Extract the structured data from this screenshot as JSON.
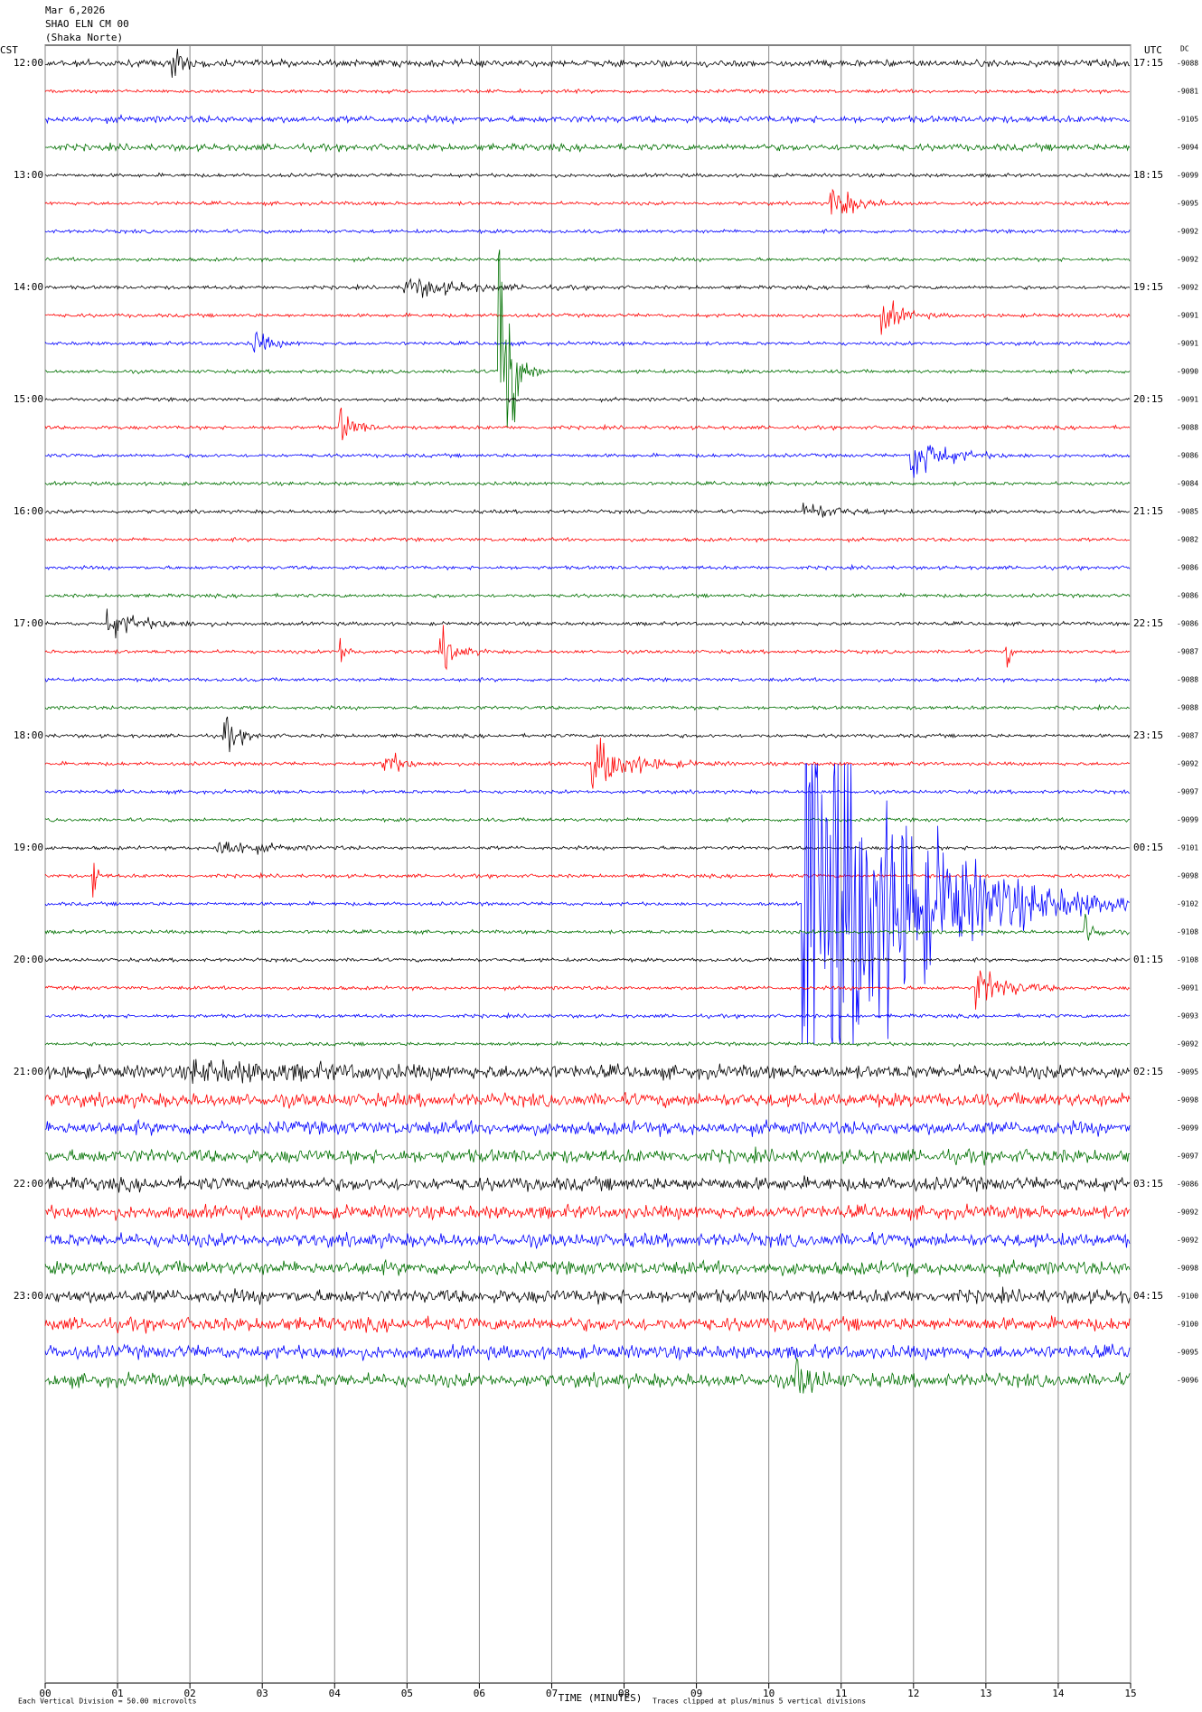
{
  "chart_data": {
    "type": "helicorder",
    "title": "Mar 6,2026",
    "subtitle": "SHAO ELN CM 00",
    "station_name": "(Shaka Norte)",
    "left_axis_label": "CST",
    "right_axis_label": "UTC",
    "dc_label": "DC",
    "xlabel": "TIME (MINUTES)",
    "footer_left": "Each Vertical Division =   50.00 microvolts",
    "footer_right": "Traces clipped at plus/minus 5 vertical divisions",
    "xlim": [
      0,
      15
    ],
    "xticks": [
      {
        "value": 0,
        "label": "00"
      },
      {
        "value": 1,
        "label": "01"
      },
      {
        "value": 2,
        "label": "02"
      },
      {
        "value": 3,
        "label": "03"
      },
      {
        "value": 4,
        "label": "04"
      },
      {
        "value": 5,
        "label": "05"
      },
      {
        "value": 6,
        "label": "06"
      },
      {
        "value": 7,
        "label": "07"
      },
      {
        "value": 8,
        "label": "08"
      },
      {
        "value": 9,
        "label": "09"
      },
      {
        "value": 10,
        "label": "10"
      },
      {
        "value": 11,
        "label": "11"
      },
      {
        "value": 12,
        "label": "12"
      },
      {
        "value": 13,
        "label": "13"
      },
      {
        "value": 14,
        "label": "14"
      },
      {
        "value": 15,
        "label": "15"
      }
    ],
    "grid": true,
    "colors": [
      "#000000",
      "#ff0000",
      "#0000ff",
      "#007000"
    ],
    "left_times": [
      "12:00",
      "13:00",
      "14:00",
      "15:00",
      "16:00",
      "17:00",
      "18:00",
      "19:00",
      "20:00",
      "21:00",
      "22:00",
      "23:00"
    ],
    "right_times": [
      "17:15",
      "18:15",
      "19:15",
      "20:15",
      "21:15",
      "22:15",
      "23:15",
      "00:15",
      "01:15",
      "02:15",
      "03:15",
      "04:15"
    ],
    "dc_values": [
      "-9088",
      "-9081",
      "-9105",
      "-9094",
      "-9099",
      "-9095",
      "-9092",
      "-9092",
      "-9092",
      "-9091",
      "-9091",
      "-9090",
      "-9091",
      "-9088",
      "-9086",
      "-9084",
      "-9085",
      "-9082",
      "-9086",
      "-9086",
      "-9086",
      "-9087",
      "-9088",
      "-9088",
      "-9087",
      "-9092",
      "-9097",
      "-9099",
      "-9101",
      "-9098",
      "-9102",
      "-9108",
      "-9108",
      "-9091",
      "-9093",
      "-9092",
      "-9095",
      "-9098",
      "-9099",
      "-9097",
      "-9086",
      "-9092",
      "-9092",
      "-9098",
      "-9100",
      "-9100",
      "-9095",
      "-9096"
    ]
  }
}
